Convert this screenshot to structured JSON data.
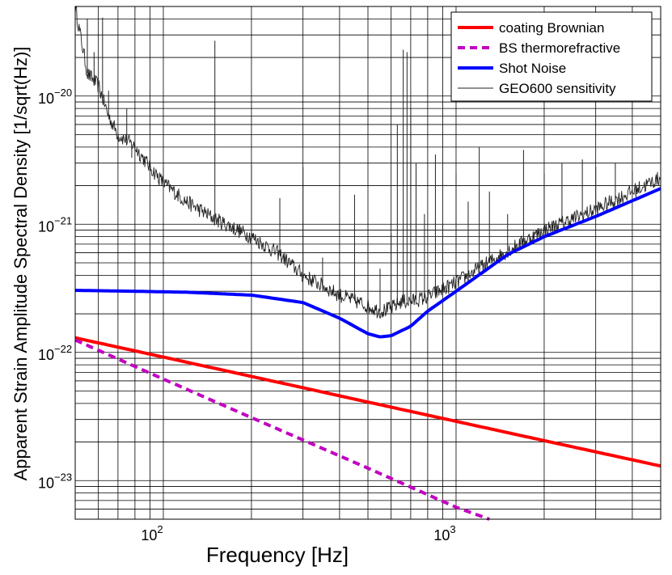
{
  "chart_data": {
    "type": "line",
    "title": "",
    "xlabel": "Frequency [Hz]",
    "ylabel": "Apparent Strain Amplitude Spectral Density [1/sqrt(Hz)]",
    "xscale": "log",
    "yscale": "log",
    "xlim": [
      50,
      5000
    ],
    "ylim": [
      5e-24,
      5e-20
    ],
    "grid": true,
    "legend_position": "top-right",
    "x_ticks": [
      {
        "base": "10",
        "exp": "2",
        "value": 100
      },
      {
        "base": "10",
        "exp": "3",
        "value": 1000
      }
    ],
    "y_ticks": [
      {
        "base": "10",
        "exp": "−23",
        "value": 1e-23
      },
      {
        "base": "10",
        "exp": "−22",
        "value": 1e-22
      },
      {
        "base": "10",
        "exp": "−21",
        "value": 1e-21
      },
      {
        "base": "10",
        "exp": "−20",
        "value": 1e-20
      }
    ],
    "series": [
      {
        "name": "coating Brownian",
        "color": "#ff0000",
        "style": "solid",
        "x": [
          50,
          100,
          200,
          500,
          1000,
          2000,
          5000
        ],
        "y": [
          1.3e-22,
          9.2e-23,
          6.5e-23,
          4.1e-23,
          2.9e-23,
          2.05e-23,
          1.3e-23
        ]
      },
      {
        "name": "BS thermorefractive",
        "color": "#c000c0",
        "style": "dashed",
        "x": [
          50,
          100,
          200,
          500,
          1000,
          1300
        ],
        "y": [
          1.25e-22,
          6.2e-23,
          3.1e-23,
          1.25e-23,
          6.2e-24,
          5e-24
        ]
      },
      {
        "name": "Shot Noise",
        "color": "#0000ff",
        "style": "solid",
        "x": [
          50,
          80,
          120,
          200,
          300,
          400,
          500,
          550,
          600,
          700,
          800,
          1000,
          1500,
          2000,
          3000,
          5000
        ],
        "y": [
          3.05e-22,
          3e-22,
          2.95e-22,
          2.8e-22,
          2.45e-22,
          1.85e-22,
          1.4e-22,
          1.32e-22,
          1.35e-22,
          1.6e-22,
          2.1e-22,
          3e-22,
          5.8e-22,
          8e-22,
          1.15e-21,
          1.9e-21
        ]
      },
      {
        "name": "GEO600 sensitivity",
        "color": "#222222",
        "style": "thin",
        "x": [
          50,
          55,
          60,
          65,
          70,
          75,
          80,
          90,
          100,
          120,
          150,
          200,
          250,
          300,
          400,
          500,
          550,
          600,
          650,
          700,
          800,
          1000,
          1500,
          2000,
          3000,
          4000,
          5000
        ],
        "y": [
          5e-20,
          1.5e-20,
          1.2e-20,
          7e-21,
          5e-21,
          4.5e-21,
          4e-21,
          2.8e-21,
          2.1e-21,
          1.5e-21,
          1.1e-21,
          8e-22,
          5.8e-22,
          4e-22,
          2.8e-22,
          2.3e-22,
          2.1e-22,
          2.2e-22,
          2.5e-22,
          2.5e-22,
          2.7e-22,
          3.5e-22,
          6.2e-22,
          9e-22,
          1.3e-21,
          1.8e-21,
          2.3e-21
        ],
        "peaks": [
          {
            "x": 55,
            "y": 4e-20
          },
          {
            "x": 58,
            "y": 2.2e-20
          },
          {
            "x": 62,
            "y": 4.1e-20
          },
          {
            "x": 65,
            "y": 1.1e-20
          },
          {
            "x": 75,
            "y": 8e-21
          },
          {
            "x": 78,
            "y": 3.3e-21
          },
          {
            "x": 100,
            "y": 2.8e-21
          },
          {
            "x": 150,
            "y": 2.7e-20
          },
          {
            "x": 200,
            "y": 2.9e-21
          },
          {
            "x": 250,
            "y": 1.6e-21
          },
          {
            "x": 300,
            "y": 2.8e-21
          },
          {
            "x": 350,
            "y": 5.5e-22
          },
          {
            "x": 400,
            "y": 4.5e-22
          },
          {
            "x": 450,
            "y": 1.7e-21
          },
          {
            "x": 500,
            "y": 7e-22
          },
          {
            "x": 550,
            "y": 4.5e-22
          },
          {
            "x": 600,
            "y": 8.5e-22
          },
          {
            "x": 630,
            "y": 6e-21
          },
          {
            "x": 660,
            "y": 2.3e-20
          },
          {
            "x": 680,
            "y": 2.2e-20
          },
          {
            "x": 700,
            "y": 8e-21
          },
          {
            "x": 730,
            "y": 3e-21
          },
          {
            "x": 780,
            "y": 1.2e-21
          },
          {
            "x": 850,
            "y": 3.5e-21
          },
          {
            "x": 900,
            "y": 1e-21
          },
          {
            "x": 1000,
            "y": 2.5e-21
          },
          {
            "x": 1100,
            "y": 1.5e-21
          },
          {
            "x": 1200,
            "y": 4e-21
          },
          {
            "x": 1300,
            "y": 1.8e-21
          },
          {
            "x": 1500,
            "y": 1.2e-21
          },
          {
            "x": 1700,
            "y": 3.8e-21
          },
          {
            "x": 2000,
            "y": 2.5e-21
          },
          {
            "x": 2300,
            "y": 3e-21
          },
          {
            "x": 2700,
            "y": 3.2e-21
          },
          {
            "x": 3000,
            "y": 2.8e-21
          },
          {
            "x": 3500,
            "y": 3e-21
          },
          {
            "x": 4000,
            "y": 2.6e-21
          }
        ]
      }
    ]
  }
}
